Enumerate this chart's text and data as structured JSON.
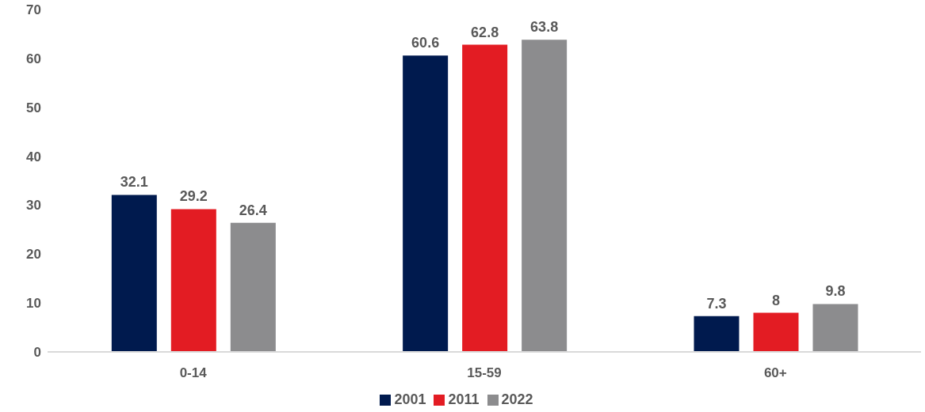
{
  "chart_data": {
    "type": "bar",
    "categories": [
      "0-14",
      "15-59",
      "60+"
    ],
    "series": [
      {
        "name": "2001",
        "color": "#001a4e",
        "values": [
          32.1,
          60.6,
          7.3
        ]
      },
      {
        "name": "2011",
        "color": "#e31c23",
        "values": [
          29.2,
          62.8,
          8
        ]
      },
      {
        "name": "2022",
        "color": "#8c8c8e",
        "values": [
          26.4,
          63.8,
          9.8
        ]
      }
    ],
    "ylim": [
      0,
      70
    ],
    "yticks": [
      0,
      10,
      20,
      30,
      40,
      50,
      60,
      70
    ],
    "grid": false,
    "legend": "bottom",
    "data_labels": true
  }
}
